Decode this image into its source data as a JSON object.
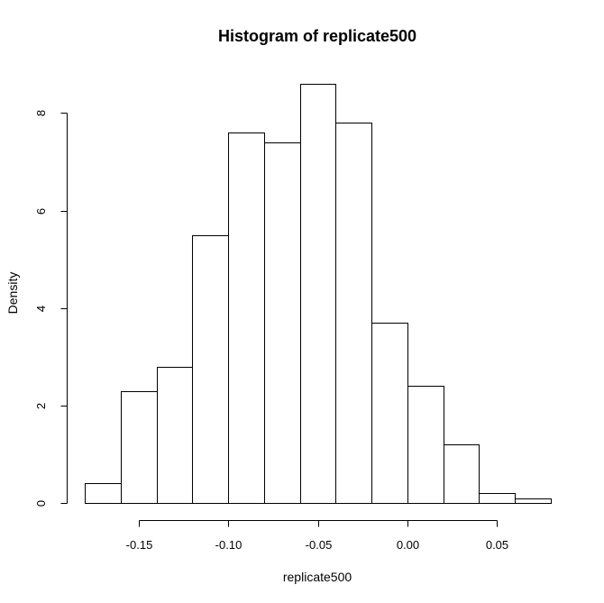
{
  "chart_data": {
    "type": "bar",
    "title": "Histogram of replicate500",
    "xlabel": "replicate500",
    "ylabel": "Density",
    "bins": [
      {
        "start": -0.18,
        "end": -0.16,
        "value": 0.4
      },
      {
        "start": -0.16,
        "end": -0.14,
        "value": 2.3
      },
      {
        "start": -0.14,
        "end": -0.12,
        "value": 2.8
      },
      {
        "start": -0.12,
        "end": -0.1,
        "value": 5.5
      },
      {
        "start": -0.1,
        "end": -0.08,
        "value": 7.6
      },
      {
        "start": -0.08,
        "end": -0.06,
        "value": 7.4
      },
      {
        "start": -0.06,
        "end": -0.04,
        "value": 8.6
      },
      {
        "start": -0.04,
        "end": -0.02,
        "value": 7.8
      },
      {
        "start": -0.02,
        "end": 0.0,
        "value": 3.7
      },
      {
        "start": 0.0,
        "end": 0.02,
        "value": 2.4
      },
      {
        "start": 0.02,
        "end": 0.04,
        "value": 1.2
      },
      {
        "start": 0.04,
        "end": 0.06,
        "value": 0.2
      },
      {
        "start": 0.06,
        "end": 0.08,
        "value": 0.1
      }
    ],
    "xlim": [
      -0.18,
      0.08
    ],
    "ylim": [
      0,
      8.6
    ],
    "x_ticks": [
      {
        "value": -0.15,
        "label": "-0.15"
      },
      {
        "value": -0.1,
        "label": "-0.10"
      },
      {
        "value": -0.05,
        "label": "-0.05"
      },
      {
        "value": 0.0,
        "label": "0.00"
      },
      {
        "value": 0.05,
        "label": "0.05"
      }
    ],
    "y_ticks": [
      {
        "value": 0,
        "label": "0"
      },
      {
        "value": 2,
        "label": "2"
      },
      {
        "value": 4,
        "label": "4"
      },
      {
        "value": 6,
        "label": "6"
      },
      {
        "value": 8,
        "label": "8"
      }
    ],
    "grid": false,
    "legend": "none"
  }
}
